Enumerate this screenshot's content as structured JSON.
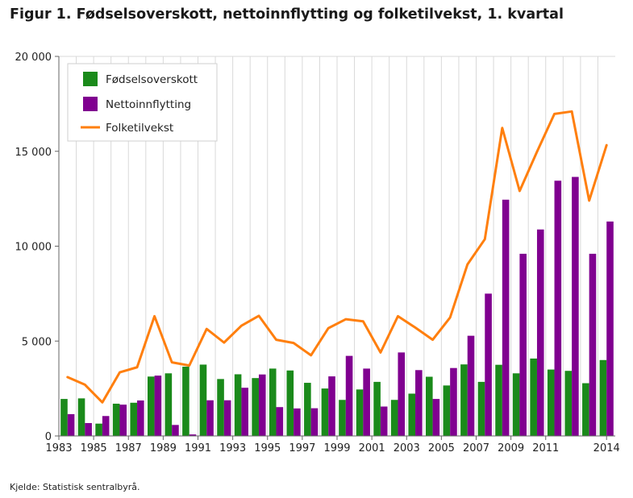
{
  "title": "Figur 1. Fødselsoverskott, nettoinnflytting og folketilvekst, 1. kvartal",
  "source": "Kjelde: Statistisk sentralbyrå.",
  "colors": {
    "birth": "#1a8a1a",
    "migration": "#800090",
    "growth": "#ff7f0e"
  },
  "chart_data": {
    "type": "bar",
    "title": "Figur 1. Fødselsoverskott, nettoinnflytting og folketilvekst, 1. kvartal",
    "xlabel": "",
    "ylabel": "",
    "ylim": [
      0,
      20000
    ],
    "yticks": [
      0,
      5000,
      10000,
      15000,
      20000
    ],
    "ytick_labels": [
      "0",
      "5 000",
      "10 000",
      "15 000",
      "20 000"
    ],
    "xtick_labels": [
      "1983",
      "1985",
      "1987",
      "1989",
      "1991",
      "1993",
      "1995",
      "1997",
      "1999",
      "2001",
      "2003",
      "2005",
      "2007",
      "2009",
      "2011",
      "2014"
    ],
    "grid": "vertical",
    "legend": "top-left",
    "categories": [
      1983,
      1984,
      1985,
      1986,
      1987,
      1988,
      1989,
      1990,
      1991,
      1992,
      1993,
      1994,
      1995,
      1996,
      1997,
      1998,
      1999,
      2000,
      2001,
      2002,
      2003,
      2004,
      2005,
      2006,
      2007,
      2008,
      2009,
      2010,
      2011,
      2012,
      2013,
      2014
    ],
    "series": [
      {
        "name": "Fødselsoverskott",
        "type": "bar",
        "values": [
          1950,
          1980,
          650,
          1700,
          1750,
          3130,
          3300,
          3650,
          3760,
          3000,
          3250,
          3050,
          3550,
          3450,
          2800,
          2500,
          1900,
          2450,
          2850,
          1900,
          2230,
          3120,
          2660,
          3770,
          2850,
          3750,
          3300,
          4080,
          3500,
          3430,
          2780,
          4000
        ]
      },
      {
        "name": "Nettoinnflytting",
        "type": "bar",
        "values": [
          1150,
          680,
          1050,
          1650,
          1870,
          3180,
          580,
          80,
          1880,
          1880,
          2540,
          3240,
          1520,
          1450,
          1460,
          3140,
          4220,
          3550,
          1550,
          4400,
          3470,
          1950,
          3580,
          5280,
          7500,
          12450,
          9600,
          10880,
          13450,
          13650,
          9600,
          11300
        ]
      },
      {
        "name": "Folketilvekst",
        "type": "line",
        "values": [
          3100,
          2700,
          1770,
          3350,
          3620,
          6310,
          3880,
          3710,
          5640,
          4920,
          5810,
          6330,
          5070,
          4900,
          4250,
          5680,
          6150,
          6040,
          4400,
          6310,
          5710,
          5070,
          6240,
          9040,
          10370,
          16230,
          12910,
          14980,
          16970,
          17100,
          12400,
          15320
        ]
      }
    ]
  }
}
